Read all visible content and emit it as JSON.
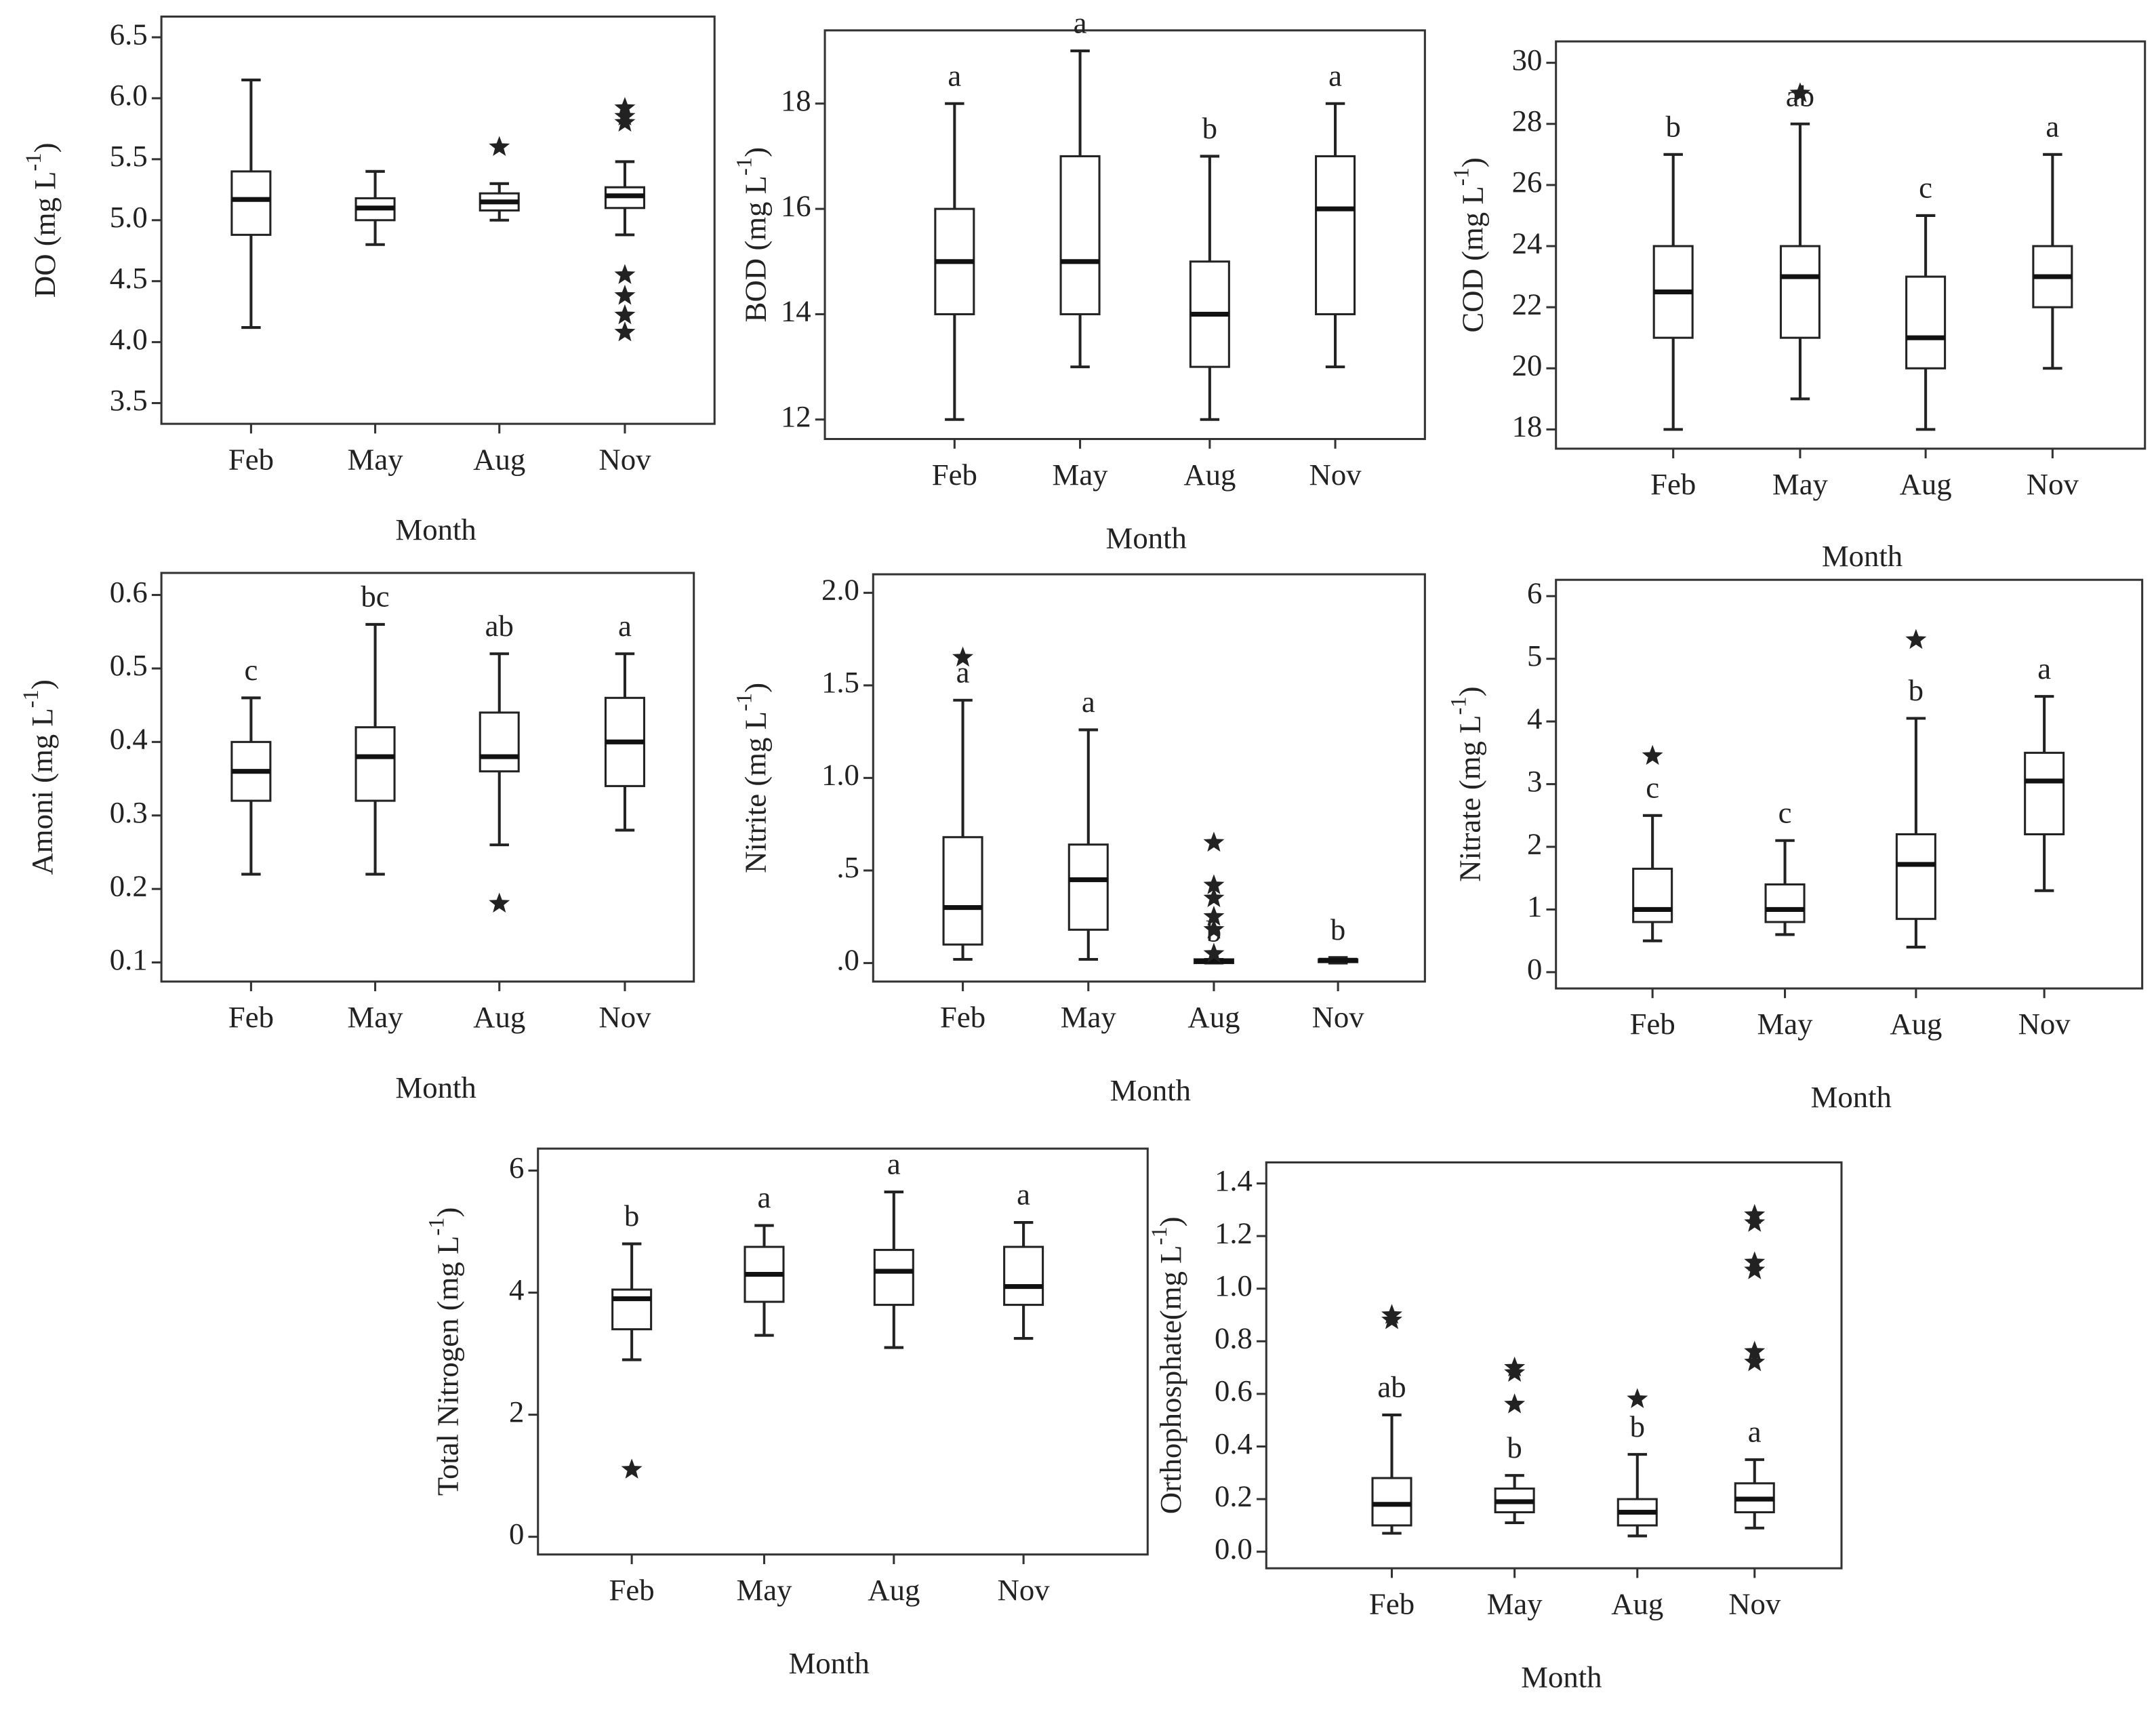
{
  "chart_data": [
    {
      "type": "box",
      "ylabel": [
        "DO (mg L",
        "-1",
        ")"
      ],
      "xlabel": "Month",
      "categories": [
        "Feb",
        "May",
        "Aug",
        "Nov"
      ],
      "ylim": [
        3.33,
        6.67
      ],
      "yticks": [
        3.5,
        {
          "value": 4.0,
          "label": "4.0"
        },
        4.5,
        {
          "value": 5.0,
          "label": "5.0"
        },
        5.5,
        {
          "value": 6.0,
          "label": "6.0"
        },
        6.5
      ],
      "boxes": [
        {
          "min": 4.12,
          "q1": 4.88,
          "median": 5.17,
          "q3": 5.4,
          "max": 6.15,
          "outliers": []
        },
        {
          "min": 4.8,
          "q1": 5.0,
          "median": 5.1,
          "q3": 5.18,
          "max": 5.4,
          "outliers": []
        },
        {
          "min": 5.0,
          "q1": 5.08,
          "median": 5.15,
          "q3": 5.22,
          "max": 5.3,
          "outliers": [
            5.6
          ]
        },
        {
          "min": 4.88,
          "q1": 5.1,
          "median": 5.2,
          "q3": 5.27,
          "max": 5.48,
          "outliers": [
            5.92,
            5.85,
            5.8,
            4.55,
            4.38,
            4.22,
            4.08
          ]
        }
      ]
    },
    {
      "type": "box",
      "ylabel": [
        "BOD  (mg L",
        "-1",
        ")"
      ],
      "xlabel": "Month",
      "categories": [
        "Feb",
        "May",
        "Aug",
        "Nov"
      ],
      "ylim": [
        11.63,
        19.39
      ],
      "yticks": [
        12,
        14,
        16,
        18
      ],
      "boxes": [
        {
          "min": 12,
          "q1": 14,
          "median": 15,
          "q3": 16,
          "max": 18,
          "outliers": [],
          "letter": "a"
        },
        {
          "min": 13,
          "q1": 14,
          "median": 15,
          "q3": 17,
          "max": 19,
          "outliers": [],
          "letter": "a"
        },
        {
          "min": 12,
          "q1": 13,
          "median": 14,
          "q3": 15,
          "max": 17,
          "outliers": [],
          "letter": "b"
        },
        {
          "min": 13,
          "q1": 14,
          "median": 16,
          "q3": 17,
          "max": 18,
          "outliers": [],
          "letter": "a"
        }
      ]
    },
    {
      "type": "box",
      "ylabel": [
        "COD  (mg L",
        "-1",
        ")"
      ],
      "xlabel": "Month",
      "categories": [
        "Feb",
        "May",
        "Aug",
        "Nov"
      ],
      "ylim": [
        17.37,
        30.7
      ],
      "yticks": [
        18,
        20,
        22,
        24,
        26,
        28,
        30
      ],
      "boxes": [
        {
          "min": 18,
          "q1": 21,
          "median": 22.5,
          "q3": 24,
          "max": 27,
          "outliers": [],
          "letter": "b"
        },
        {
          "min": 19,
          "q1": 21,
          "median": 23,
          "q3": 24,
          "max": 28,
          "outliers": [
            29
          ],
          "letter": "ab"
        },
        {
          "min": 18,
          "q1": 20,
          "median": 21,
          "q3": 23,
          "max": 25,
          "outliers": [],
          "letter": "c"
        },
        {
          "min": 20,
          "q1": 22,
          "median": 23,
          "q3": 24,
          "max": 27,
          "outliers": [],
          "letter": "a"
        }
      ]
    },
    {
      "type": "box",
      "ylabel": [
        "Amoni (mg L",
        "-1",
        ")"
      ],
      "xlabel": "Month",
      "categories": [
        "Feb",
        "May",
        "Aug",
        "Nov"
      ],
      "ylim": [
        0.074,
        0.63
      ],
      "yticks": [
        0.1,
        0.2,
        0.3,
        0.4,
        0.5,
        0.6
      ],
      "boxes": [
        {
          "min": 0.22,
          "q1": 0.32,
          "median": 0.36,
          "q3": 0.4,
          "max": 0.46,
          "outliers": [],
          "letter": "c"
        },
        {
          "min": 0.22,
          "q1": 0.32,
          "median": 0.38,
          "q3": 0.42,
          "max": 0.56,
          "outliers": [],
          "letter": "bc"
        },
        {
          "min": 0.26,
          "q1": 0.36,
          "median": 0.38,
          "q3": 0.44,
          "max": 0.52,
          "outliers": [
            0.18
          ],
          "letter": "ab"
        },
        {
          "min": 0.28,
          "q1": 0.34,
          "median": 0.4,
          "q3": 0.46,
          "max": 0.52,
          "outliers": [],
          "letter": "a"
        }
      ]
    },
    {
      "type": "box",
      "ylabel": [
        "Nitrite (mg L",
        "-1",
        ")"
      ],
      "xlabel": "Month",
      "categories": [
        "Feb",
        "May",
        "Aug",
        "Nov"
      ],
      "ylim": [
        -0.1,
        2.1
      ],
      "yticks": [
        {
          "value": 0,
          "label": ".0"
        },
        {
          "value": 0.5,
          "label": ".5"
        },
        {
          "value": 1.0,
          "label": "1.0"
        },
        1.5,
        {
          "value": 2.0,
          "label": "2.0"
        }
      ],
      "boxes": [
        {
          "min": 0.02,
          "q1": 0.1,
          "median": 0.3,
          "q3": 0.68,
          "max": 1.42,
          "outliers": [
            1.65
          ],
          "letter": "a"
        },
        {
          "min": 0.02,
          "q1": 0.18,
          "median": 0.45,
          "q3": 0.64,
          "max": 1.26,
          "outliers": [],
          "letter": "a"
        },
        {
          "min": 0,
          "q1": 0,
          "median": 0.01,
          "q3": 0.02,
          "max": 0.02,
          "outliers": [
            0.65,
            0.42,
            0.35,
            0.25,
            0.18,
            0.05
          ],
          "letter": "b"
        },
        {
          "min": 0,
          "q1": 0.01,
          "median": 0.015,
          "q3": 0.02,
          "max": 0.03,
          "outliers": [],
          "letter": "b"
        }
      ]
    },
    {
      "type": "box",
      "ylabel": [
        "Nitrate (mg L",
        "-1",
        ")"
      ],
      "xlabel": "Month",
      "categories": [
        "Feb",
        "May",
        "Aug",
        "Nov"
      ],
      "ylim": [
        -0.26,
        6.26
      ],
      "yticks": [
        0,
        1,
        2,
        3,
        4,
        5,
        6
      ],
      "boxes": [
        {
          "min": 0.5,
          "q1": 0.8,
          "median": 1.0,
          "q3": 1.65,
          "max": 2.5,
          "outliers": [
            3.45
          ],
          "letter": "c"
        },
        {
          "min": 0.6,
          "q1": 0.8,
          "median": 1.0,
          "q3": 1.4,
          "max": 2.1,
          "outliers": [],
          "letter": "c"
        },
        {
          "min": 0.4,
          "q1": 0.85,
          "median": 1.72,
          "q3": 2.2,
          "max": 4.05,
          "outliers": [
            5.3
          ],
          "letter": "b"
        },
        {
          "min": 1.3,
          "q1": 2.2,
          "median": 3.05,
          "q3": 3.5,
          "max": 4.4,
          "outliers": [],
          "letter": "a"
        }
      ]
    },
    {
      "type": "box",
      "ylabel": [
        "Total Nitrogen (mg L",
        "-1",
        ")"
      ],
      "xlabel": "Month",
      "categories": [
        "Feb",
        "May",
        "Aug",
        "Nov"
      ],
      "ylim": [
        -0.29,
        6.36
      ],
      "yticks": [
        0,
        2,
        4,
        6
      ],
      "boxes": [
        {
          "min": 2.9,
          "q1": 3.4,
          "median": 3.9,
          "q3": 4.05,
          "max": 4.8,
          "outliers": [
            1.1
          ],
          "letter": "b"
        },
        {
          "min": 3.3,
          "q1": 3.85,
          "median": 4.3,
          "q3": 4.75,
          "max": 5.1,
          "outliers": [],
          "letter": "a"
        },
        {
          "min": 3.1,
          "q1": 3.8,
          "median": 4.35,
          "q3": 4.7,
          "max": 5.65,
          "outliers": [],
          "letter": "a"
        },
        {
          "min": 3.25,
          "q1": 3.8,
          "median": 4.1,
          "q3": 4.75,
          "max": 5.15,
          "outliers": [],
          "letter": "a"
        }
      ]
    },
    {
      "type": "box",
      "ylabel": [
        "Orthophosphate(mg L",
        "-1",
        ")"
      ],
      "xlabel": "Month",
      "categories": [
        "Feb",
        "May",
        "Aug",
        "Nov"
      ],
      "ylim": [
        -0.063,
        1.48
      ],
      "yticks": [
        {
          "value": 0,
          "label": "0.0"
        },
        0.2,
        0.4,
        0.6,
        0.8,
        {
          "value": 1.0,
          "label": "1.0"
        },
        1.2,
        1.4
      ],
      "boxes": [
        {
          "min": 0.07,
          "q1": 0.1,
          "median": 0.18,
          "q3": 0.28,
          "max": 0.52,
          "outliers": [
            0.9,
            0.88
          ],
          "letter": "ab"
        },
        {
          "min": 0.11,
          "q1": 0.15,
          "median": 0.19,
          "q3": 0.24,
          "max": 0.29,
          "outliers": [
            0.7,
            0.68,
            0.56
          ],
          "letter": "b"
        },
        {
          "min": 0.06,
          "q1": 0.1,
          "median": 0.15,
          "q3": 0.2,
          "max": 0.37,
          "outliers": [
            0.58
          ],
          "letter": "b"
        },
        {
          "min": 0.09,
          "q1": 0.15,
          "median": 0.2,
          "q3": 0.26,
          "max": 0.35,
          "outliers": [
            1.28,
            1.25,
            1.1,
            1.07,
            0.76,
            0.72
          ],
          "letter": "a"
        }
      ]
    }
  ]
}
